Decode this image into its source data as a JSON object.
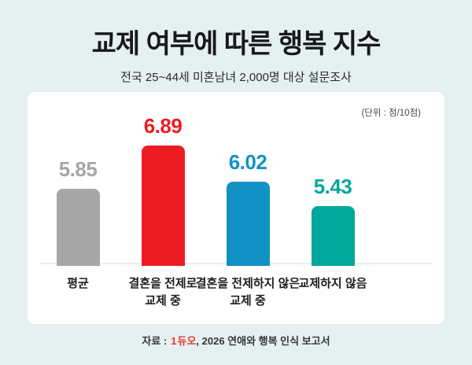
{
  "chart_data": {
    "type": "bar",
    "title": "교제 여부에 따른 행복 지수",
    "subtitle": "전국 25~44세 미혼남녀 2,000명 대상 설문조사",
    "unit_label": "(단위 : 점/10점)",
    "categories": [
      "평균",
      "결혼을 전제로\n교제 중",
      "결혼을 전제하지 않은\n교제 중",
      "교제하지 않음"
    ],
    "values": [
      5.85,
      6.89,
      6.02,
      5.43
    ],
    "value_labels": [
      "5.85",
      "6.89",
      "6.02",
      "5.43"
    ],
    "bar_colors": [
      "#a6a6a6",
      "#ed1c24",
      "#1292c4",
      "#00a79b"
    ],
    "ylabel": "",
    "xlabel": "",
    "ylim": [
      0,
      10
    ],
    "axis_value_at_baseline": 4.0,
    "grid": false,
    "legend": false
  },
  "footer": {
    "prefix": "자료 :",
    "logo_mark": "1",
    "logo_text": "듀오",
    "suffix": ", 2026 연애와 행복 인식 보고서",
    "logo_color": "#e8392f"
  },
  "colors": {
    "background": "#e4f1f0",
    "card": "#ffffff",
    "baseline": "#ededed",
    "title_text": "#17191b"
  }
}
